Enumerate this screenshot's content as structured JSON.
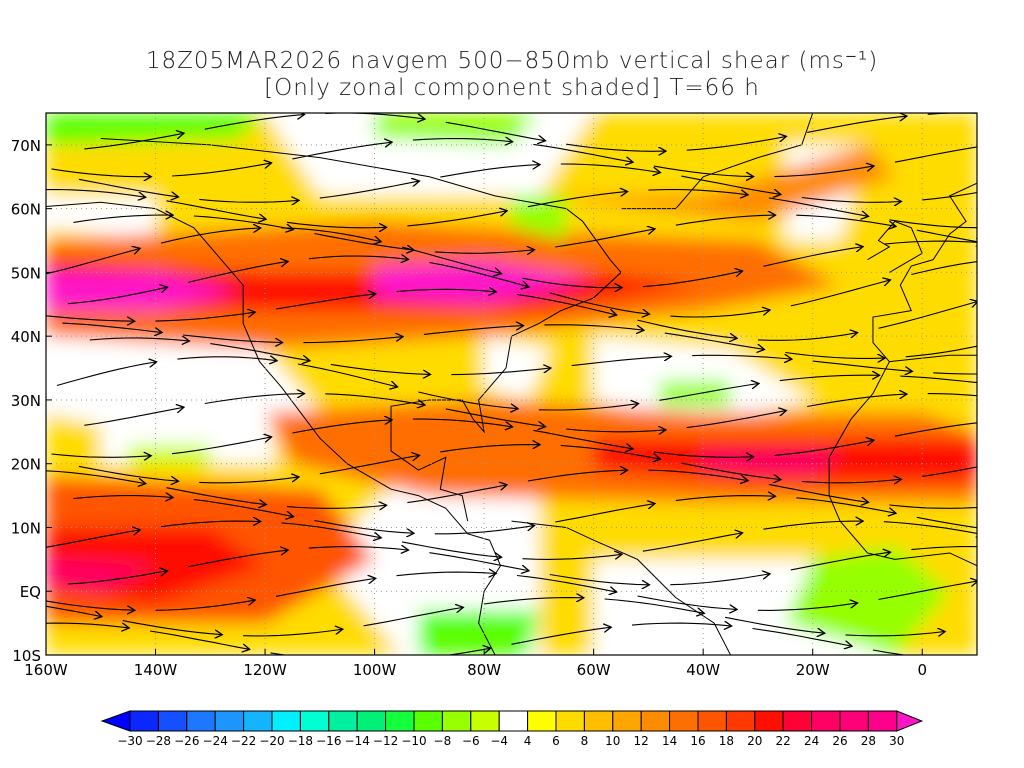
{
  "title": {
    "line1": "18Z05MAR2026 navgem 500−850mb vertical shear (ms⁻¹)",
    "line2": "[Only zonal component shaded] T=66 h"
  },
  "map": {
    "lon_range": [
      -160,
      10
    ],
    "lat_range": [
      -10,
      75
    ],
    "lat_ticks": [
      {
        "v": 70,
        "t": "70N"
      },
      {
        "v": 60,
        "t": "60N"
      },
      {
        "v": 50,
        "t": "50N"
      },
      {
        "v": 40,
        "t": "40N"
      },
      {
        "v": 30,
        "t": "30N"
      },
      {
        "v": 20,
        "t": "20N"
      },
      {
        "v": 10,
        "t": "10N"
      },
      {
        "v": 0,
        "t": "EQ"
      },
      {
        "v": -10,
        "t": "10S"
      }
    ],
    "lon_ticks": [
      {
        "v": -160,
        "t": "160W"
      },
      {
        "v": -140,
        "t": "140W"
      },
      {
        "v": -120,
        "t": "120W"
      },
      {
        "v": -100,
        "t": "100W"
      },
      {
        "v": -80,
        "t": "80W"
      },
      {
        "v": -60,
        "t": "60W"
      },
      {
        "v": -40,
        "t": "40W"
      },
      {
        "v": -20,
        "t": "20W"
      },
      {
        "v": 0,
        "t": "0"
      }
    ]
  },
  "colorbar": {
    "levels": [
      -30,
      -28,
      -26,
      -24,
      -22,
      -20,
      -18,
      -16,
      -14,
      -12,
      -10,
      -8,
      -6,
      -4,
      4,
      6,
      8,
      10,
      12,
      14,
      16,
      18,
      20,
      22,
      24,
      26,
      28,
      30
    ],
    "colors": [
      "#0a28ff",
      "#1450ff",
      "#1e78ff",
      "#1e96ff",
      "#14b4ff",
      "#00f0ff",
      "#00ffd2",
      "#00f0a0",
      "#00f078",
      "#14ff3c",
      "#5aff00",
      "#96ff00",
      "#c8ff00",
      "#ffffff",
      "#ffff00",
      "#ffdc00",
      "#ffbe00",
      "#ffa500",
      "#ff8c00",
      "#ff6e00",
      "#ff5500",
      "#ff3700",
      "#ff0f00",
      "#ff0037",
      "#ff0064",
      "#ff0078",
      "#ff008c"
    ],
    "under_color": "#0000ff",
    "over_color": "#ff14c8"
  }
}
